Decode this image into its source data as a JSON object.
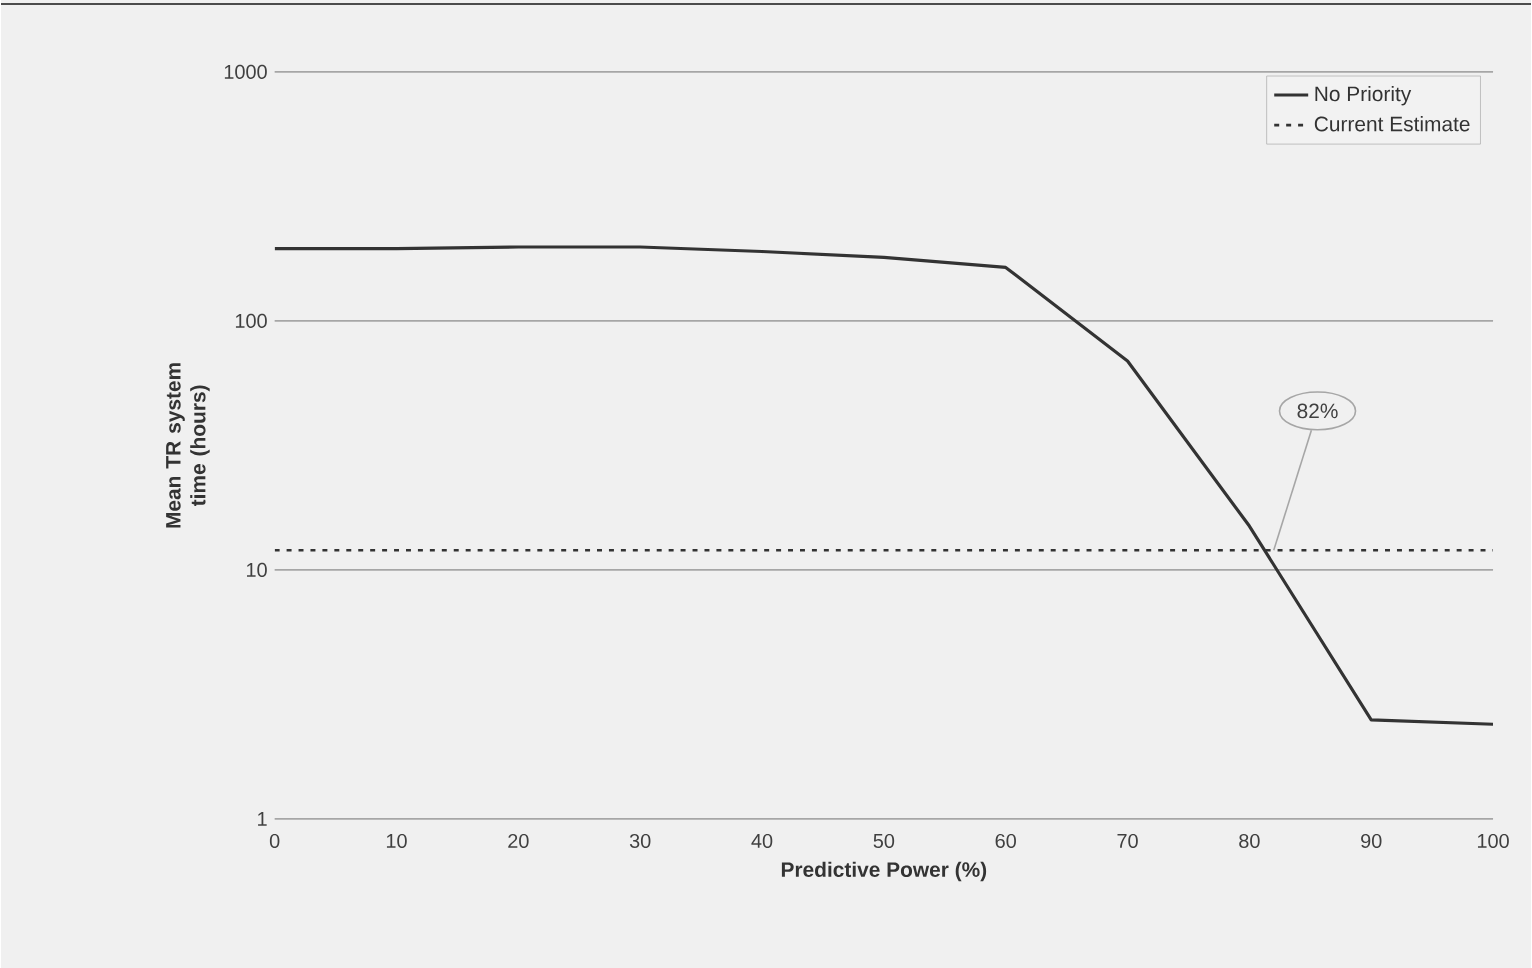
{
  "chart_data": {
    "type": "line",
    "xlabel": "Predictive Power (%)",
    "ylabel": "Mean TR system time (hours)",
    "x": [
      0,
      10,
      20,
      30,
      40,
      50,
      60,
      70,
      80,
      90,
      100
    ],
    "series": [
      {
        "name": "No Priority",
        "color": "#333333",
        "line_style": "solid",
        "values": [
          195,
          195,
          198,
          198,
          190,
          180,
          164,
          69,
          15,
          2.5,
          2.4
        ]
      },
      {
        "name": "Current Estimate",
        "color": "#333333",
        "line_style": "dotted",
        "x": [
          0,
          100
        ],
        "values": [
          12,
          12
        ]
      }
    ],
    "annotations": [
      {
        "text": "82%",
        "x": 82,
        "y": 12
      }
    ],
    "log": "y",
    "xlim": [
      0,
      100
    ],
    "ylim": [
      1,
      1000
    ],
    "xticks": [
      0,
      10,
      20,
      30,
      40,
      50,
      60,
      70,
      80,
      90,
      100
    ],
    "yticks": [
      1,
      10,
      100,
      1000
    ],
    "grid": "y",
    "legend": "top right",
    "marker": "none"
  }
}
